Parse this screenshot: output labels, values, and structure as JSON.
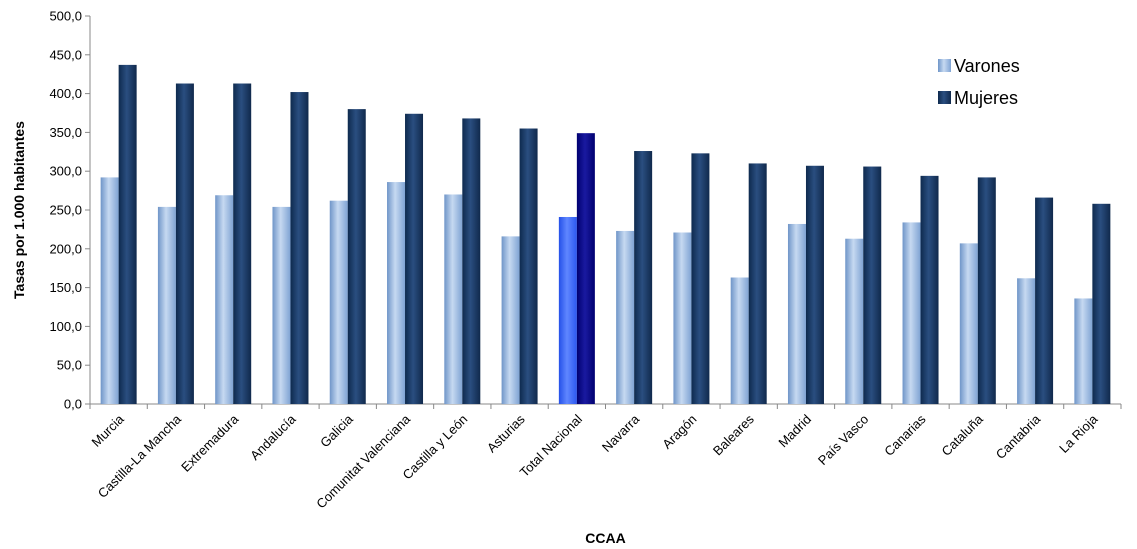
{
  "chart_data": {
    "type": "bar",
    "xlabel": "CCAA",
    "ylabel": "Tasas por 1.000 habitantes",
    "ylim": [
      0,
      500
    ],
    "ytick_step": 50,
    "ytick_labels": [
      "0,0",
      "50,0",
      "100,0",
      "150,0",
      "200,0",
      "250,0",
      "300,0",
      "350,0",
      "400,0",
      "450,0",
      "500,0"
    ],
    "grid": false,
    "legend_position": "top-right",
    "categories": [
      "Murcia",
      "Castilla-La Mancha",
      "Extremadura",
      "Andalucía",
      "Galicia",
      "Comunitat Valenciana",
      "Castilla y León",
      "Asturias",
      "Total Nacional",
      "Navarra",
      "Aragón",
      "Baleares",
      "Madrid",
      "País Vasco",
      "Canarias",
      "Cataluña",
      "Cantabria",
      "La Rioja"
    ],
    "highlight_category": "Total Nacional",
    "series": [
      {
        "name": "Varones",
        "color": "#8EB4E3",
        "highlight_color": "#3366FF",
        "values": [
          292,
          254,
          269,
          254,
          262,
          286,
          270,
          216,
          241,
          223,
          221,
          163,
          232,
          213,
          234,
          207,
          162,
          136
        ]
      },
      {
        "name": "Mujeres",
        "color": "#17375E",
        "highlight_color": "#000080",
        "values": [
          437,
          413,
          413,
          402,
          380,
          374,
          368,
          355,
          349,
          326,
          323,
          310,
          307,
          306,
          294,
          292,
          266,
          258
        ]
      }
    ]
  }
}
